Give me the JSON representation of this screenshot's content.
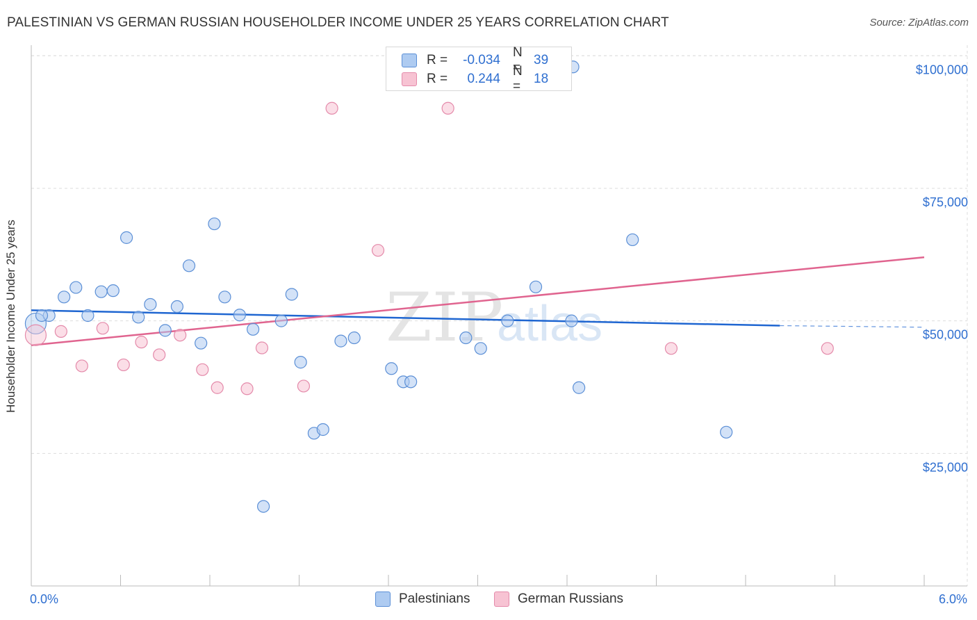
{
  "title": "PALESTINIAN VS GERMAN RUSSIAN HOUSEHOLDER INCOME UNDER 25 YEARS CORRELATION CHART",
  "source": "Source: ZipAtlas.com",
  "watermark": {
    "part1": "ZIP",
    "part2": "atlas"
  },
  "colors": {
    "blue_fill": "#aecbf1",
    "blue_stroke": "#5b8fd6",
    "blue_line": "#1f66d1",
    "pink_fill": "#f7c3d3",
    "pink_stroke": "#e48aaa",
    "pink_line": "#e0648f",
    "axis_text": "#2f6fd0",
    "grid": "#dddddd"
  },
  "legend_top": {
    "rows": [
      {
        "r_label": "R =",
        "r_value": "-0.034",
        "n_label": "N =",
        "n_value": "39"
      },
      {
        "r_label": "R =",
        "r_value": "0.244",
        "n_label": "N =",
        "n_value": "18"
      }
    ]
  },
  "legend_bottom": [
    "Palestinians",
    "German Russians"
  ],
  "chart_data": {
    "type": "scatter",
    "title": "PALESTINIAN VS GERMAN RUSSIAN HOUSEHOLDER INCOME UNDER 25 YEARS CORRELATION CHART",
    "xlabel": "",
    "ylabel": "Householder Income Under 25 years",
    "xlim": [
      0,
      6
    ],
    "ylim": [
      0,
      102000
    ],
    "x_tick_labels": [
      "0.0%",
      "6.0%"
    ],
    "y_ticks": [
      25000,
      50000,
      75000,
      100000
    ],
    "y_tick_labels": [
      "$25,000",
      "$50,000",
      "$75,000",
      "$100,000"
    ],
    "grid": true,
    "legend_placement": "top-center",
    "series": [
      {
        "name": "Palestinians",
        "r": -0.034,
        "n": 39,
        "trend": {
          "x": [
            0,
            5.03
          ],
          "y": [
            52000,
            49100
          ]
        },
        "trend_dashed": {
          "x": [
            5.03,
            6.0
          ],
          "y": [
            49100,
            48800
          ]
        },
        "points": [
          {
            "x": 0.03,
            "y": 49500
          },
          {
            "x": 0.12,
            "y": 51000
          },
          {
            "x": 0.22,
            "y": 54500
          },
          {
            "x": 0.3,
            "y": 56300
          },
          {
            "x": 0.38,
            "y": 51000
          },
          {
            "x": 0.47,
            "y": 55500
          },
          {
            "x": 0.55,
            "y": 55700
          },
          {
            "x": 0.64,
            "y": 65700
          },
          {
            "x": 0.72,
            "y": 50700
          },
          {
            "x": 0.8,
            "y": 53100
          },
          {
            "x": 0.9,
            "y": 48200
          },
          {
            "x": 0.98,
            "y": 52700
          },
          {
            "x": 1.06,
            "y": 60400
          },
          {
            "x": 1.14,
            "y": 45800
          },
          {
            "x": 1.23,
            "y": 68300
          },
          {
            "x": 1.3,
            "y": 54500
          },
          {
            "x": 1.4,
            "y": 51100
          },
          {
            "x": 1.49,
            "y": 48400
          },
          {
            "x": 1.56,
            "y": 15000
          },
          {
            "x": 1.68,
            "y": 50000
          },
          {
            "x": 1.75,
            "y": 55000
          },
          {
            "x": 1.81,
            "y": 42200
          },
          {
            "x": 1.9,
            "y": 28800
          },
          {
            "x": 1.96,
            "y": 29500
          },
          {
            "x": 2.08,
            "y": 46200
          },
          {
            "x": 2.17,
            "y": 46800
          },
          {
            "x": 2.42,
            "y": 41000
          },
          {
            "x": 2.5,
            "y": 38500
          },
          {
            "x": 2.55,
            "y": 38500
          },
          {
            "x": 2.92,
            "y": 46800
          },
          {
            "x": 3.02,
            "y": 44800
          },
          {
            "x": 3.2,
            "y": 50000
          },
          {
            "x": 3.39,
            "y": 56400
          },
          {
            "x": 3.64,
            "y": 97900
          },
          {
            "x": 3.63,
            "y": 50000
          },
          {
            "x": 3.68,
            "y": 37400
          },
          {
            "x": 4.04,
            "y": 65300
          },
          {
            "x": 4.67,
            "y": 29000
          },
          {
            "x": 0.07,
            "y": 51000
          }
        ]
      },
      {
        "name": "German Russians",
        "r": 0.244,
        "n": 18,
        "trend": {
          "x": [
            0,
            6.0
          ],
          "y": [
            45400,
            62000
          ]
        },
        "points": [
          {
            "x": 0.03,
            "y": 47300
          },
          {
            "x": 0.2,
            "y": 48000
          },
          {
            "x": 0.34,
            "y": 41500
          },
          {
            "x": 0.48,
            "y": 48600
          },
          {
            "x": 0.62,
            "y": 41700
          },
          {
            "x": 0.74,
            "y": 46000
          },
          {
            "x": 0.86,
            "y": 43600
          },
          {
            "x": 1.0,
            "y": 47300
          },
          {
            "x": 1.15,
            "y": 40800
          },
          {
            "x": 1.25,
            "y": 37400
          },
          {
            "x": 1.45,
            "y": 37200
          },
          {
            "x": 1.55,
            "y": 44900
          },
          {
            "x": 1.83,
            "y": 37700
          },
          {
            "x": 2.02,
            "y": 90100
          },
          {
            "x": 2.33,
            "y": 63300
          },
          {
            "x": 2.8,
            "y": 90100
          },
          {
            "x": 4.3,
            "y": 44800
          },
          {
            "x": 5.35,
            "y": 44800
          }
        ]
      }
    ]
  }
}
